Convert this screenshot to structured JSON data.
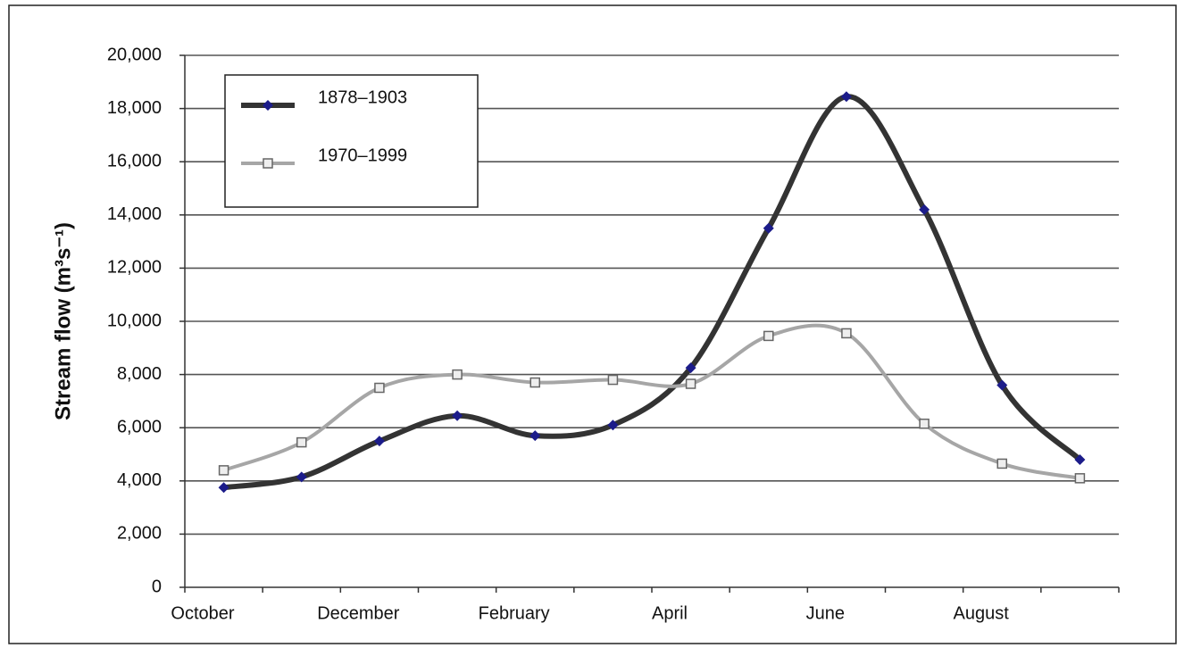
{
  "chart_data": {
    "type": "line",
    "y_label": "Stream flow (m³s⁻¹)",
    "categories": [
      "October",
      null,
      "December",
      null,
      "February",
      null,
      "April",
      null,
      "June",
      null,
      "August",
      null
    ],
    "series": [
      {
        "name": "1878–1903",
        "color": "#333333",
        "marker_color": "#1c1c8a",
        "marker": "diamond",
        "values": [
          3750,
          4150,
          5500,
          6450,
          5700,
          6100,
          8250,
          13500,
          18450,
          14200,
          7600,
          4800
        ]
      },
      {
        "name": "1970–1999",
        "color": "#a6a6a6",
        "marker_color": "#666666",
        "marker": "square",
        "values": [
          4400,
          5450,
          7500,
          8000,
          7700,
          7800,
          7650,
          9450,
          9550,
          6150,
          4650,
          4100
        ]
      }
    ],
    "ylim": [
      0,
      20000
    ],
    "yticks": [
      0,
      {
        "value": 2000,
        "label": "2,000"
      },
      {
        "value": 4000,
        "label": "4,000"
      },
      {
        "value": 6000,
        "label": "6,000"
      },
      {
        "value": 8000,
        "label": "8,000"
      },
      {
        "value": 10000,
        "label": "10,000"
      },
      {
        "value": 12000,
        "label": "12,000"
      },
      {
        "value": 14000,
        "label": "14,000"
      },
      {
        "value": 16000,
        "label": "16,000"
      },
      {
        "value": 18000,
        "label": "18,000"
      },
      {
        "value": 20000,
        "label": "20,000"
      }
    ],
    "grid": true,
    "legend": "upper left"
  }
}
